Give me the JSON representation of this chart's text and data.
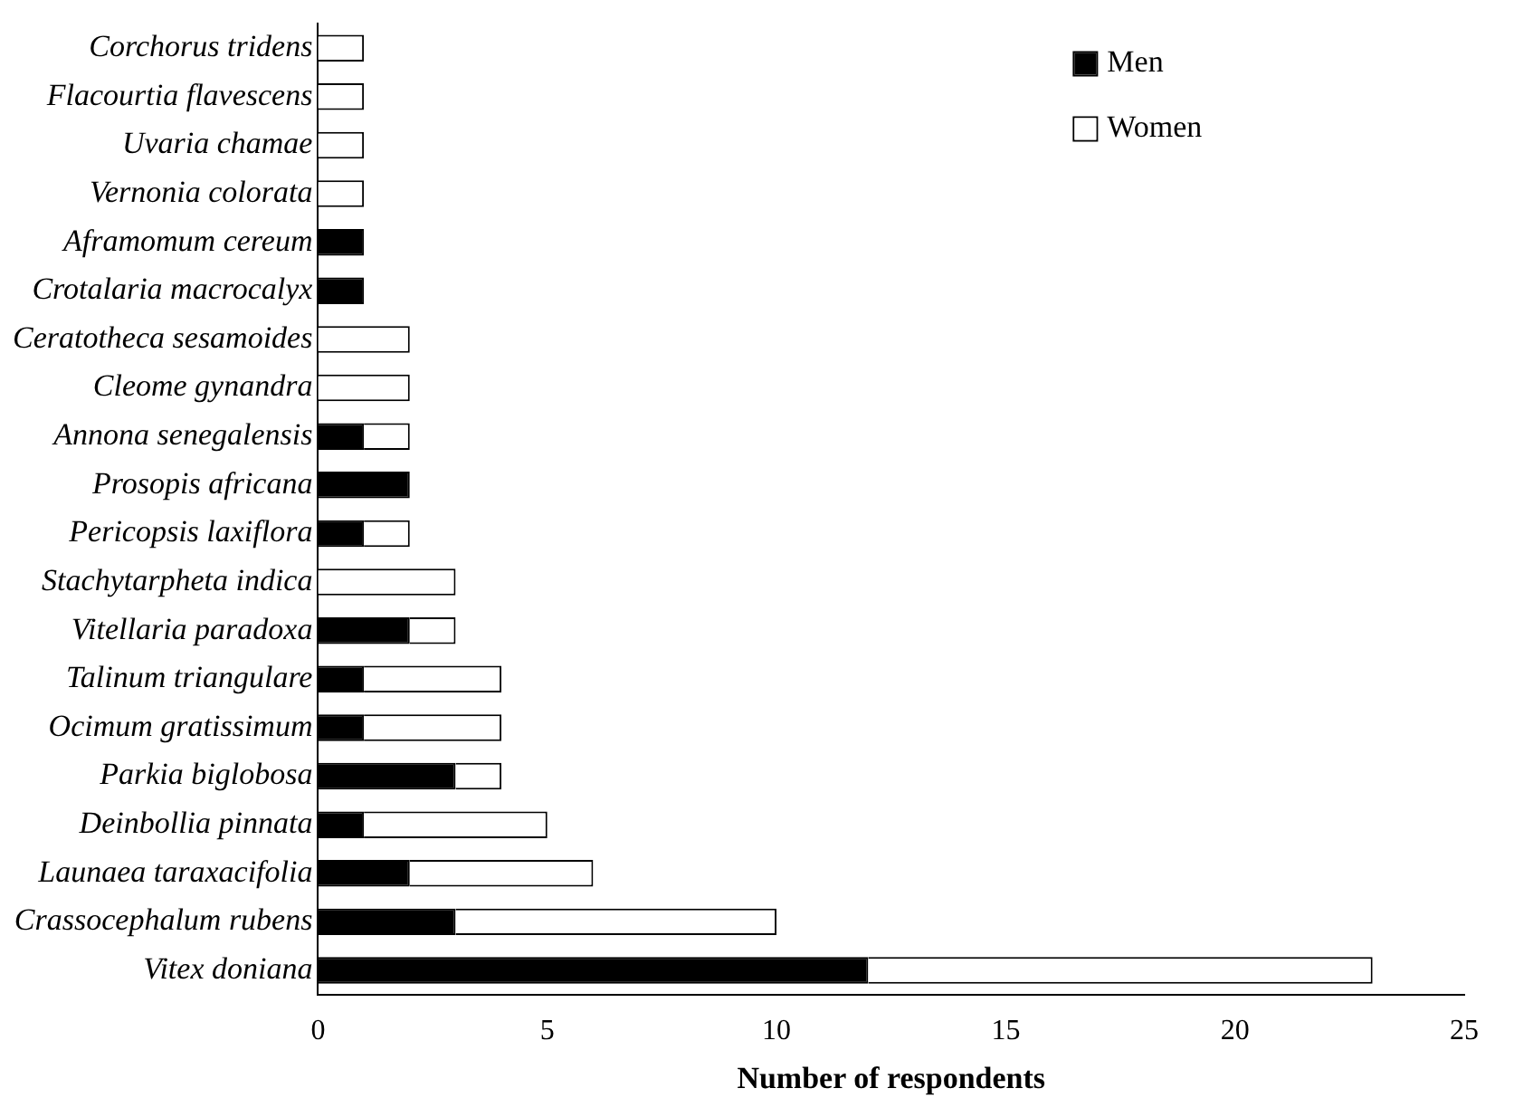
{
  "chart_data": {
    "type": "bar",
    "orientation": "horizontal",
    "stacked": true,
    "xlabel": "Number of respondents",
    "categories": [
      "Corchorus tridens",
      "Flacourtia flavescens",
      "Uvaria chamae",
      "Vernonia colorata",
      "Aframomum cereum",
      "Crotalaria macrocalyx",
      "Ceratotheca sesamoides",
      "Cleome gynandra",
      "Annona senegalensis",
      "Prosopis africana",
      "Pericopsis laxiflora",
      "Stachytarpheta indica",
      "Vitellaria paradoxa",
      "Talinum triangulare",
      "Ocimum gratissimum",
      "Parkia biglobosa",
      "Deinbollia pinnata",
      "Launaea taraxacifolia",
      "Crassocephalum rubens",
      "Vitex doniana"
    ],
    "series": [
      {
        "name": "Men",
        "color": "#000000",
        "values": [
          0,
          0,
          0,
          0,
          1,
          1,
          0,
          0,
          1,
          2,
          1,
          0,
          2,
          1,
          1,
          3,
          1,
          2,
          3,
          12
        ]
      },
      {
        "name": "Women",
        "color": "#ffffff",
        "values": [
          1,
          1,
          1,
          1,
          0,
          0,
          2,
          2,
          1,
          0,
          1,
          3,
          1,
          3,
          3,
          1,
          4,
          4,
          7,
          11
        ]
      }
    ],
    "xlim": [
      0,
      25
    ],
    "xticks": [
      0,
      5,
      10,
      15,
      20,
      25
    ],
    "grid": false,
    "legend": "top right"
  }
}
